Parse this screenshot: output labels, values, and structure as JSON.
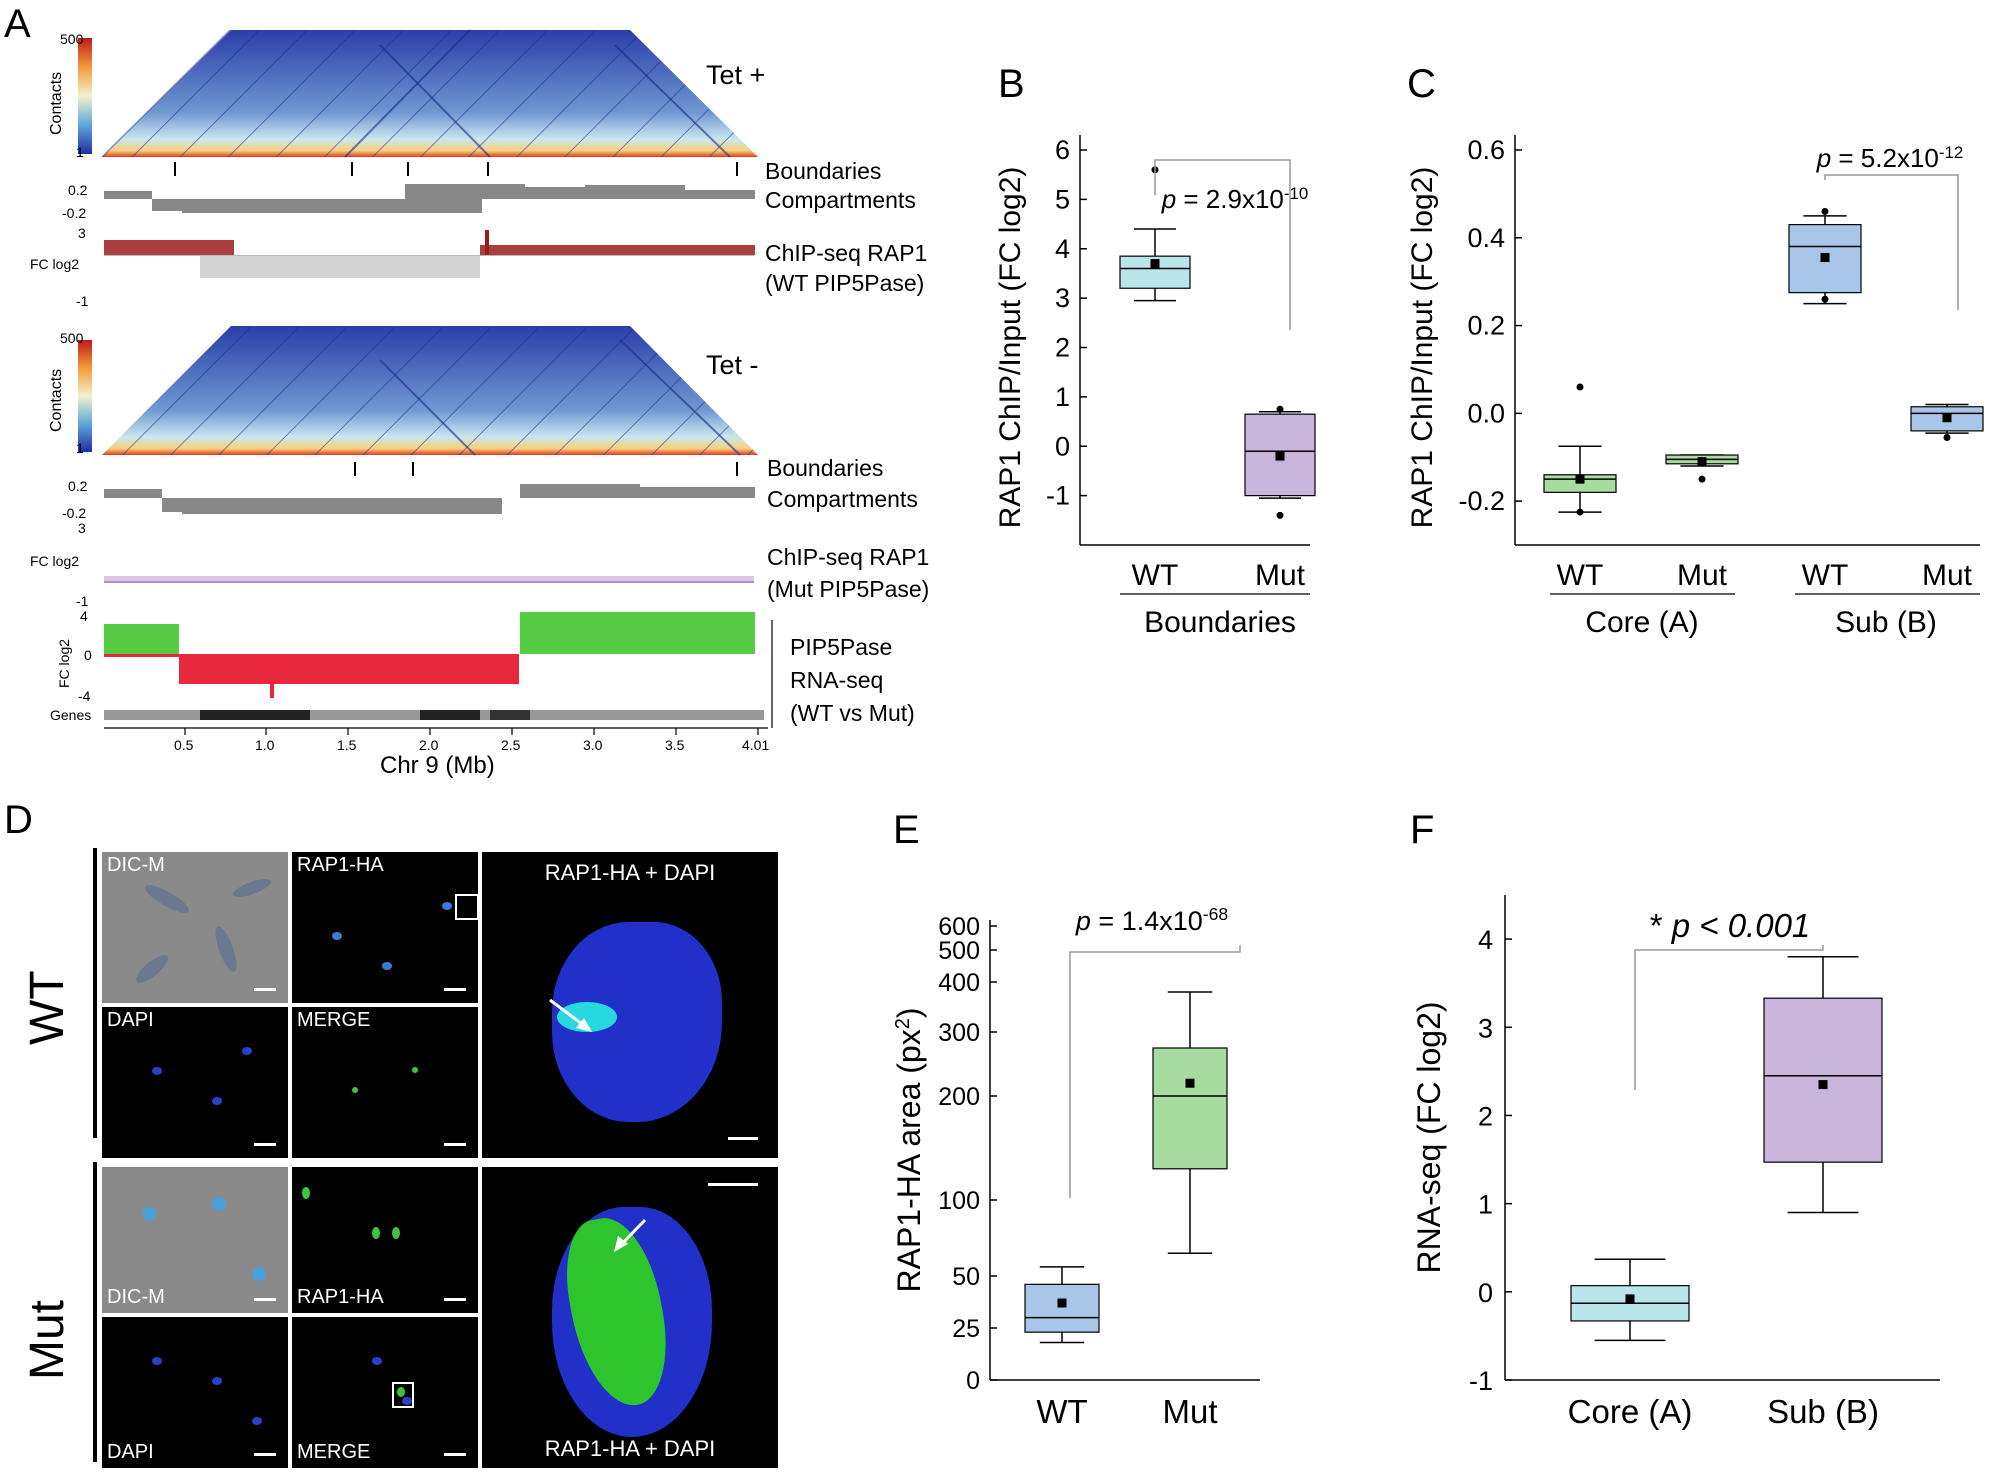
{
  "panels": {
    "A": "A",
    "B": "B",
    "C": "C",
    "D": "D",
    "E": "E",
    "F": "F"
  },
  "panelA": {
    "heatmap_top": {
      "condition": "Tet +",
      "scale_max": "500",
      "scale_min": "1",
      "scale_label": "Contacts"
    },
    "heatmap_bottom": {
      "condition": "Tet -",
      "scale_max": "500",
      "scale_min": "1",
      "scale_label": "Contacts"
    },
    "track_labels_top": {
      "boundaries": "Boundaries",
      "compartments": "Compartments",
      "chip1": "ChIP-seq RAP1",
      "chip2": "(WT PIP5Pase)"
    },
    "track_labels_bottom": {
      "boundaries": "Boundaries",
      "compartments": "Compartments",
      "chip1": "ChIP-seq RAP1",
      "chip2": "(Mut PIP5Pase)"
    },
    "rna_labels": [
      "PIP5Pase",
      "RNA-seq",
      "(WT vs Mut)"
    ],
    "comp_ticks": [
      "0.2",
      "-0.2"
    ],
    "fc_label": "FC log2",
    "chip_ticks": [
      "3",
      "-1"
    ],
    "rna_ticks": [
      "4",
      "0",
      "-4"
    ],
    "genes_label": "Genes",
    "x_ticks": [
      "0.5",
      "1.0",
      "1.5",
      "2.0",
      "2.5",
      "3.0",
      "3.5",
      "4.01"
    ],
    "x_label": "Chr 9 (Mb)"
  },
  "chart_data": [
    {
      "panel": "B",
      "type": "box",
      "ylabel": "RAP1 ChIP/Input (FC log2)",
      "ylim": [
        -2,
        6
      ],
      "yticks": [
        "6",
        "5",
        "4",
        "3",
        "2",
        "1",
        "0",
        "-1"
      ],
      "categories": [
        "WT",
        "Mut"
      ],
      "group_label": "Boundaries",
      "boxes": [
        {
          "name": "WT",
          "min": 2.95,
          "q1": 3.2,
          "median": 3.6,
          "q3": 3.85,
          "max": 4.4,
          "mean": 3.7,
          "outliers": [
            5.6
          ],
          "color": "#b8e6ea"
        },
        {
          "name": "Mut",
          "min": -1.05,
          "q1": -1.0,
          "median": -0.1,
          "q3": 0.65,
          "max": 0.7,
          "mean": -0.2,
          "outliers": [
            0.75,
            -1.4
          ],
          "color": "#c9b4dc"
        }
      ],
      "pvalue": {
        "prefix": "p",
        "text": " = 2.9x10",
        "exp": "-10"
      }
    },
    {
      "panel": "C",
      "type": "box",
      "ylabel": "RAP1 ChIP/Input (FC log2)",
      "ylim": [
        -0.3,
        0.6
      ],
      "yticks": [
        "0.6",
        "0.4",
        "0.2",
        "0.0",
        "-0.2"
      ],
      "categories": [
        "WT",
        "Mut",
        "WT",
        "Mut"
      ],
      "group_labels": [
        "Core (A)",
        "Sub (B)"
      ],
      "boxes": [
        {
          "name": "WT",
          "min": -0.225,
          "q1": -0.18,
          "median": -0.15,
          "q3": -0.14,
          "max": -0.075,
          "mean": -0.15,
          "outliers": [
            0.06,
            -0.225
          ],
          "color": "#a8dba0"
        },
        {
          "name": "Mut",
          "min": -0.12,
          "q1": -0.115,
          "median": -0.105,
          "q3": -0.095,
          "max": -0.095,
          "mean": -0.11,
          "outliers": [
            -0.15
          ],
          "color": "#a8dba0"
        },
        {
          "name": "WT",
          "min": 0.25,
          "q1": 0.275,
          "median": 0.38,
          "q3": 0.43,
          "max": 0.45,
          "mean": 0.355,
          "outliers": [
            0.46,
            0.26
          ],
          "color": "#a9c6e8"
        },
        {
          "name": "Mut",
          "min": -0.045,
          "q1": -0.04,
          "median": 0.0,
          "q3": 0.015,
          "max": 0.02,
          "mean": -0.01,
          "outliers": [
            -0.055
          ],
          "color": "#a9c6e8"
        }
      ],
      "pvalue": {
        "prefix": "p",
        "text": " = 5.2x10",
        "exp": "-12"
      }
    },
    {
      "panel": "E",
      "type": "box",
      "ylabel": "RAP1-HA area (px",
      "ylabel_sup": "2",
      "ylabel_end": ")",
      "yticks": [
        "600",
        "500",
        "400",
        "300",
        "200",
        "100",
        "50",
        "25",
        "0"
      ],
      "categories": [
        "WT",
        "Mut"
      ],
      "boxes": [
        {
          "name": "WT",
          "min": 18,
          "q1": 23,
          "median": 30,
          "q3": 46,
          "max": 56,
          "mean": 37,
          "color": "#a9c6e8"
        },
        {
          "name": "Mut",
          "min": 65,
          "q1": 130,
          "median": 200,
          "q3": 275,
          "max": 380,
          "mean": 220,
          "color": "#a8dba0"
        }
      ],
      "pvalue": {
        "prefix": "p",
        "text": " = 1.4x10",
        "exp": "-68"
      }
    },
    {
      "panel": "F",
      "type": "box",
      "ylabel": "RNA-seq (FC log2)",
      "ylim": [
        -1,
        4.5
      ],
      "yticks": [
        "4",
        "3",
        "2",
        "1",
        "0",
        "-1"
      ],
      "categories": [
        "Core (A)",
        "Sub (B)"
      ],
      "boxes": [
        {
          "name": "Core (A)",
          "min": -0.55,
          "q1": -0.33,
          "median": -0.13,
          "q3": 0.07,
          "max": 0.37,
          "mean": -0.08,
          "color": "#b8e6ea"
        },
        {
          "name": "Sub (B)",
          "min": 0.9,
          "q1": 1.47,
          "median": 2.45,
          "q3": 3.33,
          "max": 3.8,
          "mean": 2.35,
          "color": "#c9b4dc"
        }
      ],
      "pvalue": {
        "star": "* ",
        "text": "p < 0.001"
      }
    }
  ],
  "panelD": {
    "row_labels": [
      "WT",
      "Mut"
    ],
    "captions": {
      "dic": "DIC-M",
      "rap": "RAP1-HA",
      "dapi": "DAPI",
      "merge": "MERGE",
      "zoom": "RAP1-HA  +  DAPI"
    }
  }
}
